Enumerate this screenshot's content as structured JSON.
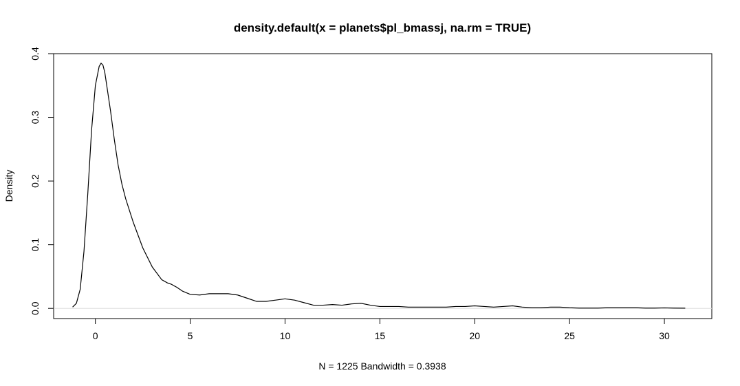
{
  "chart_data": {
    "type": "line",
    "title": "density.default(x = planets$pl_bmassj, na.rm = TRUE)",
    "xlabel": "N = 1225   Bandwidth = 0.3938",
    "ylabel": "Density",
    "xlim": [
      -2.2,
      32.5
    ],
    "ylim": [
      -0.016,
      0.4
    ],
    "x_ticks": [
      0,
      5,
      10,
      15,
      20,
      25,
      30
    ],
    "y_ticks": [
      0.0,
      0.1,
      0.2,
      0.3,
      0.4
    ],
    "x_tick_labels": [
      "0",
      "5",
      "10",
      "15",
      "20",
      "25",
      "30"
    ],
    "y_tick_labels": [
      "0.0",
      "0.1",
      "0.2",
      "0.3",
      "0.4"
    ],
    "reference_line_y": 0,
    "line_color": "#000000",
    "reference_line_color": "#dddddd",
    "series": [
      {
        "x": [
          -1.2,
          -1.0,
          -0.8,
          -0.6,
          -0.4,
          -0.2,
          0.0,
          0.2,
          0.3,
          0.4,
          0.5,
          0.6,
          0.8,
          1.0,
          1.2,
          1.4,
          1.6,
          2.0,
          2.5,
          3.0,
          3.5,
          3.8,
          4.0,
          4.3,
          4.6,
          5.0,
          5.5,
          6.0,
          6.5,
          7.0,
          7.5,
          8.0,
          8.5,
          9.0,
          9.5,
          10.0,
          10.5,
          11.0,
          11.5,
          12.0,
          12.5,
          13.0,
          13.5,
          14.0,
          14.5,
          15.0,
          15.5,
          16.0,
          16.5,
          17.0,
          17.5,
          18.0,
          18.5,
          19.0,
          19.5,
          20.0,
          20.5,
          21.0,
          21.5,
          22.0,
          22.5,
          23.0,
          23.5,
          24.0,
          24.5,
          25.0,
          25.5,
          26.0,
          26.5,
          27.0,
          27.5,
          28.0,
          28.5,
          29.0,
          29.5,
          30.0,
          30.5,
          31.1
        ],
        "y": [
          0.002,
          0.008,
          0.03,
          0.09,
          0.18,
          0.28,
          0.35,
          0.38,
          0.385,
          0.382,
          0.37,
          0.35,
          0.31,
          0.265,
          0.225,
          0.195,
          0.172,
          0.135,
          0.095,
          0.065,
          0.045,
          0.04,
          0.038,
          0.033,
          0.027,
          0.022,
          0.021,
          0.023,
          0.023,
          0.023,
          0.021,
          0.016,
          0.011,
          0.011,
          0.013,
          0.015,
          0.013,
          0.009,
          0.005,
          0.005,
          0.006,
          0.005,
          0.007,
          0.008,
          0.005,
          0.003,
          0.003,
          0.003,
          0.002,
          0.002,
          0.002,
          0.002,
          0.002,
          0.003,
          0.003,
          0.004,
          0.003,
          0.002,
          0.003,
          0.004,
          0.002,
          0.001,
          0.001,
          0.002,
          0.002,
          0.001,
          0.0005,
          0.0005,
          0.0005,
          0.001,
          0.001,
          0.001,
          0.001,
          0.0005,
          0.0005,
          0.0008,
          0.0005,
          0.0003
        ]
      }
    ]
  }
}
